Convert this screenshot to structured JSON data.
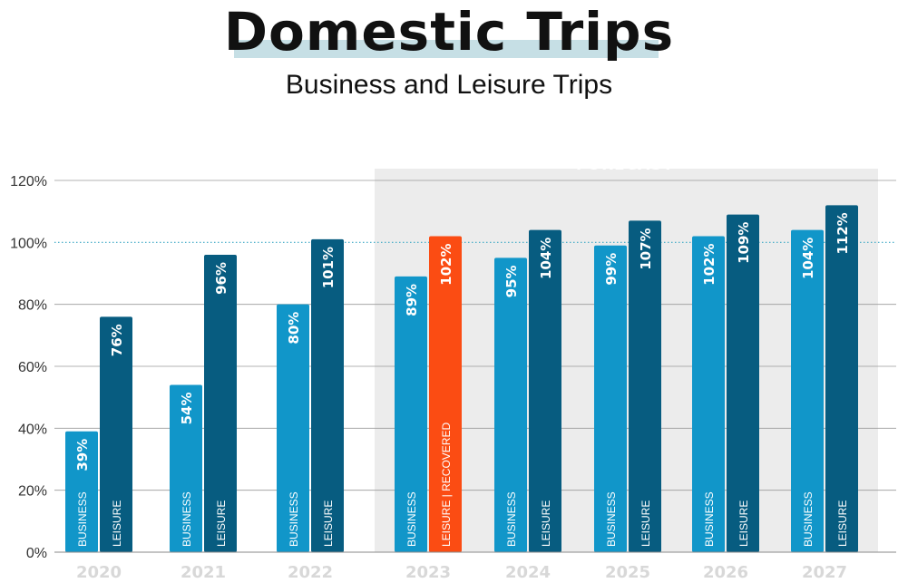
{
  "header": {
    "title": "Domestic Trips",
    "subtitle": "Business and Leisure Trips"
  },
  "colors": {
    "business": "#1196c9",
    "leisure": "#075c80",
    "recovered": "#fb4c13",
    "forecast_band": "#ececec",
    "grid": "#9a9a9a",
    "reference_line": "#3aa7c4",
    "year_label": "#d8d8d8",
    "forecast_label": "#ffffff"
  },
  "chart_data": {
    "type": "bar",
    "title": "Domestic Trips",
    "subtitle": "Business and Leisure Trips",
    "categories": [
      "2020",
      "2021",
      "2022",
      "2023",
      "2024",
      "2025",
      "2026",
      "2027"
    ],
    "series": [
      {
        "name": "BUSINESS",
        "values": [
          39,
          54,
          80,
          89,
          95,
          99,
          102,
          104
        ]
      },
      {
        "name": "LEISURE",
        "values": [
          76,
          96,
          101,
          102,
          104,
          107,
          109,
          112
        ]
      }
    ],
    "bar_inner_labels": [
      "BUSINESS",
      "LEISURE"
    ],
    "highlight": {
      "category": "2023",
      "series": "LEISURE",
      "label": "LEISURE | RECOVERED"
    },
    "yticks": [
      "0%",
      "20%",
      "40%",
      "60%",
      "80%",
      "100%",
      "120%"
    ],
    "ylim": [
      0,
      120
    ],
    "reference_line": 100,
    "forecast_label": "FORECAST",
    "forecast_from": "2023",
    "grid": true,
    "legend": "none"
  }
}
